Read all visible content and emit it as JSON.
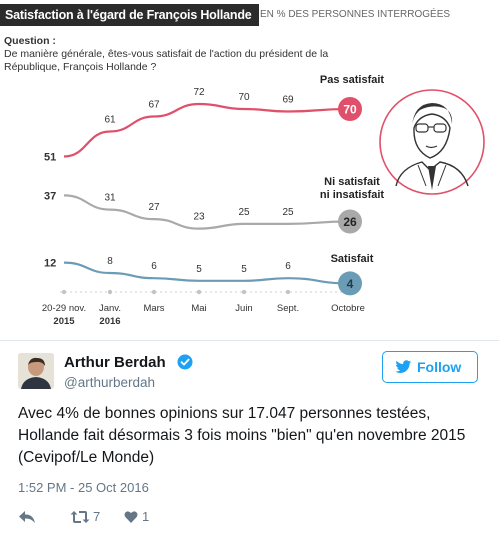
{
  "graphic": {
    "title": "Satisfaction à l'égard de François Hollande",
    "subtitle": "EN % DES PERSONNES INTERROGÉES",
    "question_label": "Question :",
    "question_text": "De manière générale, êtes-vous satisfait  de l'action du président de la République, François Hollande ?",
    "illustration": "portrait-icon"
  },
  "chart_data": {
    "type": "line",
    "categories": [
      "20-29 nov.\n2015",
      "Janv.\n2016",
      "Mars",
      "Mai",
      "Juin",
      "Sept.",
      "Octobre"
    ],
    "category_lines": [
      [
        "20-29 nov.",
        "2015"
      ],
      [
        "Janv.",
        "2016"
      ],
      [
        "Mars"
      ],
      [
        "Mai"
      ],
      [
        "Juin"
      ],
      [
        "Sept."
      ],
      [
        "Octobre"
      ]
    ],
    "series": [
      {
        "name": "Pas satisfait",
        "values": [
          51,
          61,
          67,
          72,
          70,
          69,
          70
        ],
        "color": "#e0506a"
      },
      {
        "name": "Ni satisfait\nni insatisfait",
        "name_lines": [
          "Ni satisfait",
          "ni insatisfait"
        ],
        "values": [
          37,
          31,
          27,
          23,
          25,
          25,
          26
        ],
        "color": "#a9a9a9"
      },
      {
        "name": "Satisfait",
        "values": [
          12,
          8,
          6,
          5,
          5,
          6,
          4
        ],
        "color": "#6a9cb5"
      }
    ]
  },
  "tweet": {
    "author_name": "Arthur Berdah",
    "author_handle": "@arthurberdah",
    "verified_icon": "verified-icon",
    "follow_label": "Follow",
    "text": "Avec 4% de bonnes opinions sur 17.047 personnes testées, Hollande fait désormais 3 fois moins \"bien\" qu'en novembre 2015 (Cevipof/Le Monde)",
    "timestamp": "1:52 PM - 25 Oct 2016",
    "retweet_count": "7",
    "like_count": "1",
    "icons": [
      "reply-icon",
      "retweet-icon",
      "like-icon",
      "bird-icon"
    ],
    "accent_color": "#1da1f2"
  }
}
